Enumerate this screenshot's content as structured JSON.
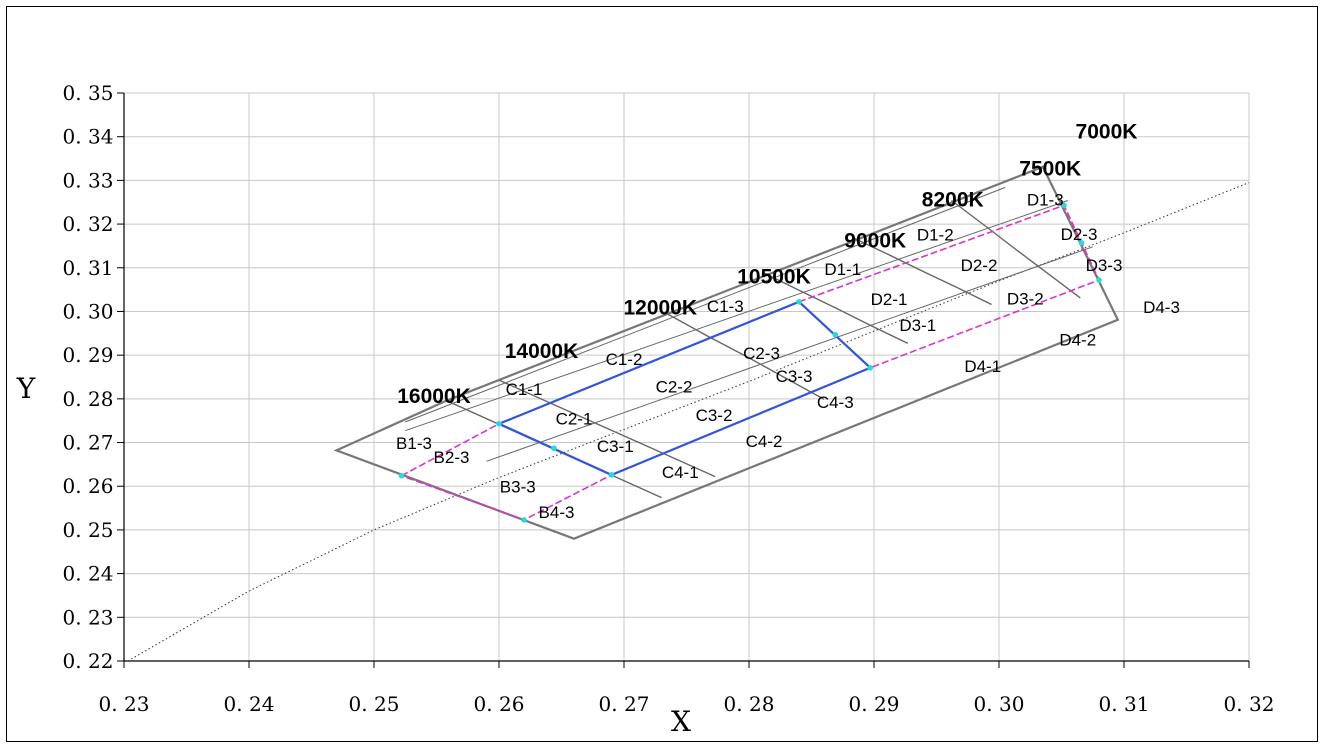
{
  "chart_data": {
    "type": "scatter",
    "title": "",
    "xlabel": "X",
    "ylabel": "Y",
    "xlim": [
      0.23,
      0.32
    ],
    "ylim": [
      0.22,
      0.35
    ],
    "x_ticks": [
      "0. 23",
      "0. 24",
      "0. 25",
      "0. 26",
      "0. 27",
      "0. 28",
      "0. 29",
      "0. 30",
      "0. 31",
      "0. 32"
    ],
    "y_ticks": [
      "0. 22",
      "0. 23",
      "0. 24",
      "0. 25",
      "0. 26",
      "0. 27",
      "0. 28",
      "0. 29",
      "0. 30",
      "0. 31",
      "0. 32",
      "0. 33",
      "0. 34",
      "0. 35"
    ],
    "grid": true,
    "colors": {
      "outline": "#777777",
      "inner_lines": "#666666",
      "blue_region": "#3355dd",
      "magenta_region": "#dd33cc",
      "markers": "#22dddd",
      "reference_curve": "#333333"
    },
    "outline": [
      [
        0.247,
        0.2682
      ],
      [
        0.2558,
        0.2796
      ],
      [
        0.3035,
        0.3331
      ],
      [
        0.3095,
        0.2981
      ],
      [
        0.266,
        0.248
      ]
    ],
    "cct_lines": [
      {
        "label": "16000K",
        "label_at": [
          0.2548,
          0.2791
        ],
        "points": []
      },
      {
        "label": "14000K",
        "label_at": [
          0.2634,
          0.2893
        ],
        "points": [
          [
            0.2558,
            0.2796
          ],
          [
            0.273,
            0.2574
          ]
        ]
      },
      {
        "label": "12000K",
        "label_at": [
          0.2729,
          0.2993
        ],
        "points": [
          [
            0.26,
            0.2843
          ],
          [
            0.2643,
            0.2788
          ],
          [
            0.2686,
            0.2733
          ],
          [
            0.273,
            0.2677
          ],
          [
            0.2773,
            0.2622
          ]
        ]
      },
      {
        "label": "10500K",
        "label_at": [
          0.282,
          0.3064
        ],
        "points": [
          [
            0.2735,
            0.2994
          ],
          [
            0.2766,
            0.2945
          ],
          [
            0.2798,
            0.2897
          ],
          [
            0.2829,
            0.2848
          ],
          [
            0.286,
            0.2799
          ]
        ]
      },
      {
        "label": "9000K",
        "label_at": [
          0.2901,
          0.3146
        ],
        "points": [
          [
            0.2812,
            0.3088
          ],
          [
            0.2841,
            0.3047
          ],
          [
            0.287,
            0.3007
          ],
          [
            0.2898,
            0.2967
          ],
          [
            0.2927,
            0.2927
          ]
        ]
      },
      {
        "label": "8200K",
        "label_at": [
          0.2963,
          0.324
        ],
        "points": [
          [
            0.2883,
            0.3169
          ],
          [
            0.2911,
            0.3131
          ],
          [
            0.2939,
            0.3092
          ],
          [
            0.2967,
            0.3054
          ],
          [
            0.2994,
            0.3016
          ]
        ]
      },
      {
        "label": "7500K",
        "label_at": [
          0.3041,
          0.3311
        ],
        "points": [
          [
            0.2962,
            0.3254
          ],
          [
            0.2988,
            0.3198
          ],
          [
            0.3013,
            0.3143
          ],
          [
            0.3039,
            0.3087
          ],
          [
            0.3065,
            0.3031
          ]
        ]
      },
      {
        "label": "7000K",
        "label_at": [
          0.3086,
          0.3396
        ],
        "points": []
      }
    ],
    "parallel_lines": [
      [
        [
          0.2525,
          0.2747
        ],
        [
          0.3005,
          0.3284
        ]
      ],
      [
        [
          0.2525,
          0.2727
        ],
        [
          0.3055,
          0.3254
        ]
      ],
      [
        [
          0.259,
          0.2657
        ],
        [
          0.3075,
          0.3148
        ]
      ]
    ],
    "blue_region": [
      [
        0.26,
        0.2743
      ],
      [
        0.284,
        0.3022
      ],
      [
        0.2897,
        0.2871
      ],
      [
        0.269,
        0.2626
      ]
    ],
    "magenta_regions": [
      [
        [
          0.2522,
          0.2624
        ],
        [
          0.26,
          0.2743
        ],
        [
          0.269,
          0.2626
        ],
        [
          0.262,
          0.2523
        ]
      ],
      [
        [
          0.284,
          0.3022
        ],
        [
          0.3052,
          0.3243
        ],
        [
          0.308,
          0.3072
        ],
        [
          0.2897,
          0.2871
        ]
      ]
    ],
    "markers": [
      [
        0.2522,
        0.2624
      ],
      [
        0.26,
        0.2743
      ],
      [
        0.2644,
        0.2687
      ],
      [
        0.269,
        0.2626
      ],
      [
        0.262,
        0.2523
      ],
      [
        0.284,
        0.3022
      ],
      [
        0.2869,
        0.2947
      ],
      [
        0.2897,
        0.2871
      ],
      [
        0.3052,
        0.3243
      ],
      [
        0.3066,
        0.3157
      ],
      [
        0.308,
        0.3072
      ]
    ],
    "reference_curve": [
      [
        0.2303,
        0.22
      ],
      [
        0.24,
        0.236
      ],
      [
        0.25,
        0.25
      ],
      [
        0.26,
        0.262
      ],
      [
        0.27,
        0.273
      ],
      [
        0.28,
        0.284
      ],
      [
        0.29,
        0.2955
      ],
      [
        0.3,
        0.307
      ],
      [
        0.31,
        0.318
      ],
      [
        0.32,
        0.3295
      ]
    ],
    "bins": [
      {
        "label": "B1-3",
        "at": [
          0.2532,
          0.2685
        ]
      },
      {
        "label": "B2-3",
        "at": [
          0.2562,
          0.2653
        ]
      },
      {
        "label": "B3-3",
        "at": [
          0.2615,
          0.2586
        ]
      },
      {
        "label": "B4-3",
        "at": [
          0.2646,
          0.2527
        ]
      },
      {
        "label": "C1-1",
        "at": [
          0.262,
          0.2809
        ]
      },
      {
        "label": "C1-2",
        "at": [
          0.27,
          0.2878
        ]
      },
      {
        "label": "C1-3",
        "at": [
          0.2781,
          0.2999
        ]
      },
      {
        "label": "C2-1",
        "at": [
          0.266,
          0.2741
        ]
      },
      {
        "label": "C2-2",
        "at": [
          0.274,
          0.2815
        ]
      },
      {
        "label": "C2-3",
        "at": [
          0.281,
          0.2891
        ]
      },
      {
        "label": "C3-1",
        "at": [
          0.2693,
          0.2678
        ]
      },
      {
        "label": "C3-2",
        "at": [
          0.2772,
          0.2749
        ]
      },
      {
        "label": "C3-3",
        "at": [
          0.2836,
          0.2838
        ]
      },
      {
        "label": "C4-1",
        "at": [
          0.2745,
          0.2619
        ]
      },
      {
        "label": "C4-2",
        "at": [
          0.2812,
          0.269
        ]
      },
      {
        "label": "C4-3",
        "at": [
          0.2869,
          0.2779
        ]
      },
      {
        "label": "D1-1",
        "at": [
          0.2875,
          0.3084
        ]
      },
      {
        "label": "D1-2",
        "at": [
          0.2949,
          0.3162
        ]
      },
      {
        "label": "D1-3",
        "at": [
          0.3037,
          0.3242
        ]
      },
      {
        "label": "D2-1",
        "at": [
          0.2912,
          0.3015
        ]
      },
      {
        "label": "D2-2",
        "at": [
          0.2984,
          0.3093
        ]
      },
      {
        "label": "D2-3",
        "at": [
          0.3064,
          0.3164
        ]
      },
      {
        "label": "D3-1",
        "at": [
          0.2935,
          0.2955
        ]
      },
      {
        "label": "D3-2",
        "at": [
          0.3021,
          0.3016
        ]
      },
      {
        "label": "D3-3",
        "at": [
          0.3084,
          0.3093
        ]
      },
      {
        "label": "D4-1",
        "at": [
          0.2987,
          0.2861
        ]
      },
      {
        "label": "D4-2",
        "at": [
          0.3063,
          0.2922
        ]
      },
      {
        "label": "D4-3",
        "at": [
          0.313,
          0.2996
        ]
      }
    ]
  }
}
